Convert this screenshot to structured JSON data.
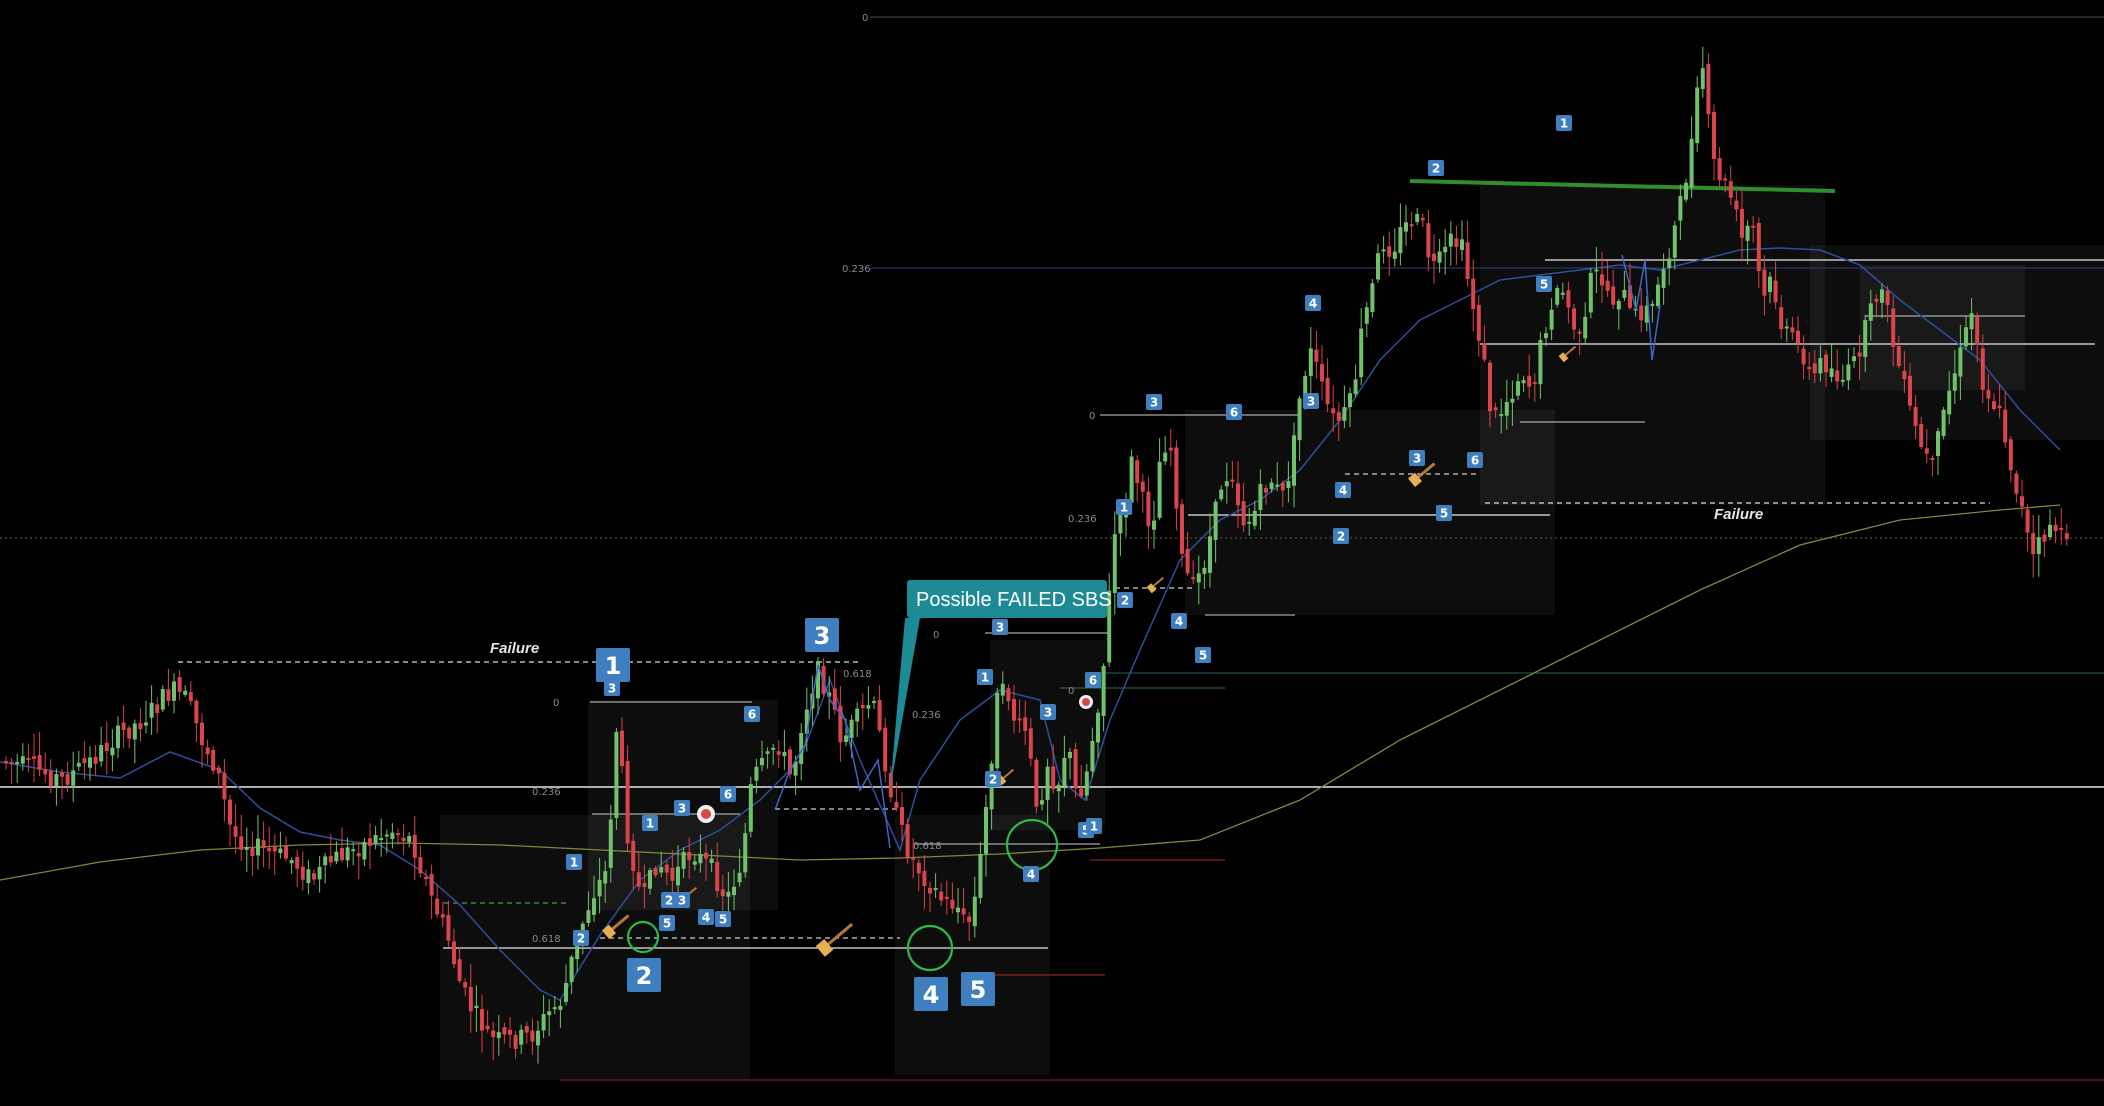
{
  "chart_data": {
    "type": "candlestick",
    "grid": false,
    "colors": {
      "background": "#000000",
      "up": "#6fc26a",
      "down": "#d9454a",
      "badge": "#3f7fc0",
      "callout": "#1e8a96",
      "ma_fast": "#2e4f9c",
      "ma_slow": "#7c8a3a",
      "resistance": "#2f8f2f",
      "circle": "#2fb84a",
      "level_white": "#e8e8e8"
    },
    "annotations": {
      "callout": "Possible FAILED SBS",
      "failure_left": "Failure",
      "failure_right": "Failure",
      "fib_labels": [
        "0",
        "0.236",
        "0.618",
        "0",
        "0.618",
        "0.236",
        "0",
        "0.618",
        "0.236",
        "0",
        "0.236",
        "0"
      ],
      "big_badges": [
        "1",
        "2",
        "3",
        "4",
        "5"
      ],
      "small_badges": [
        "3",
        "1",
        "2",
        "5",
        "6",
        "3",
        "6",
        "1",
        "2",
        "3",
        "4",
        "5",
        "3",
        "1",
        "2",
        "3",
        "6",
        "4",
        "5",
        "1",
        "2",
        "4",
        "5",
        "3",
        "1",
        "2",
        "3",
        "6",
        "4",
        "5",
        "6",
        "3",
        "1",
        "2",
        "4",
        "5"
      ]
    }
  }
}
